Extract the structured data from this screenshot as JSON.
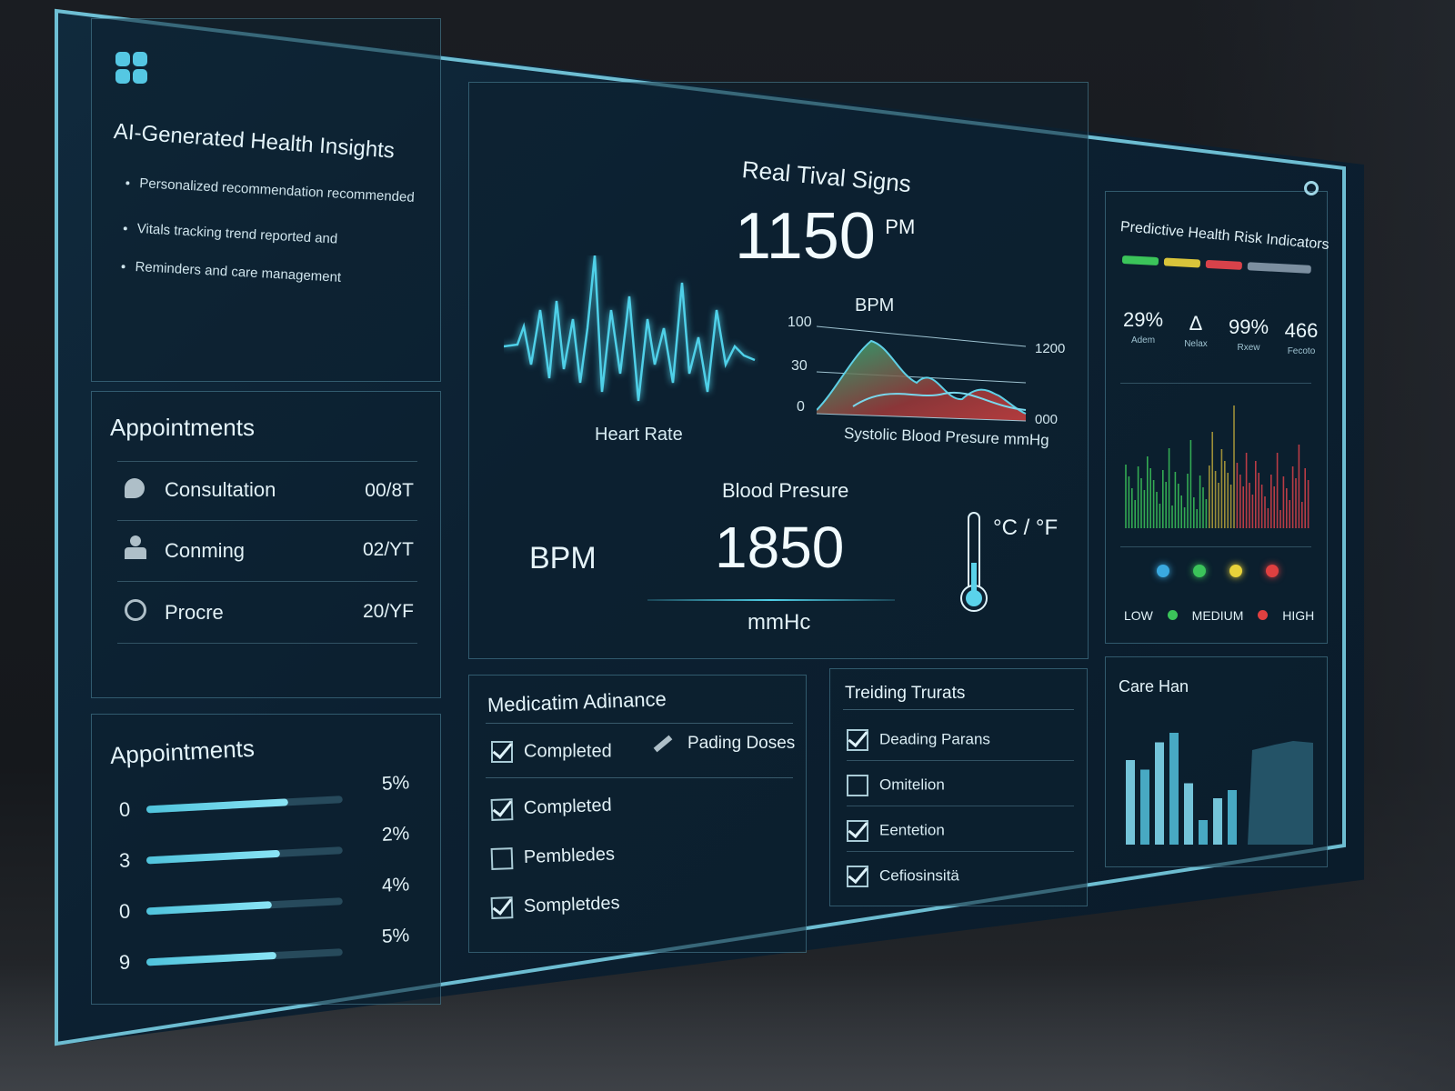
{
  "insights": {
    "title": "AI-Generated Health Insights",
    "bullets": [
      "Personalized recommendation recommended",
      "Vitals tracking trend reported and",
      "Reminders and care management"
    ]
  },
  "appointments": {
    "title": "Appointments",
    "items": [
      {
        "label": "Consultation",
        "date": "00/8T"
      },
      {
        "label": "Conming",
        "date": "02/YT"
      },
      {
        "label": "Procre",
        "date": "20/YF"
      }
    ]
  },
  "vitals": {
    "title": "Real Tival Signs",
    "main_value": "1150",
    "main_unit": "PM",
    "heart_rate_label": "Heart Rate",
    "bpm_title": "BPM",
    "y_ticks": [
      "100",
      "30",
      "0"
    ],
    "right_ticks": [
      "1200",
      "000"
    ],
    "sys_label": "Systolic Blood Presure mmHg",
    "bp_title": "Blood Presure",
    "bp_left_label": "BPM",
    "bp_value": "1850",
    "bp_unit": "mmHc",
    "temp_unit": "°C / °F"
  },
  "risk": {
    "title": "Predictive Health Risk Indicators",
    "bar_colors": [
      "#3bc45a",
      "#d9c43a",
      "#d8424a",
      "#7c8fa0"
    ],
    "stats": [
      {
        "value": "29%",
        "label": "Adem"
      },
      {
        "value": "Δ",
        "label": "Nelax"
      },
      {
        "value": "99%",
        "label": "Rxew"
      },
      {
        "value": "466",
        "label": "Fecoto"
      }
    ],
    "dots": [
      "#3aa9e0",
      "#3bc45a",
      "#e8d23a",
      "#e04040"
    ],
    "legend": {
      "low": "LOW",
      "medium": "MEDIUM",
      "high": "HIGH"
    }
  },
  "progress": {
    "title": "Appointments",
    "rows": [
      {
        "num": "0",
        "pct": "5%",
        "fill": 0.72
      },
      {
        "num": "3",
        "pct": "2%",
        "fill": 0.68
      },
      {
        "num": "0",
        "pct": "4%",
        "fill": 0.64
      },
      {
        "num": "9",
        "pct": "5%",
        "fill": 0.66
      }
    ]
  },
  "medication": {
    "title": "Medicatim Adinance",
    "top": {
      "label": "Completed",
      "checked": true
    },
    "pending": "Pading Doses",
    "items": [
      {
        "label": "Completed",
        "checked": true
      },
      {
        "label": "Pembledes",
        "checked": false
      },
      {
        "label": "Sompletdes",
        "checked": true
      }
    ]
  },
  "trending": {
    "title": "Treiding Trurats",
    "items": [
      {
        "label": "Deading Parans",
        "checked": true
      },
      {
        "label": "Omitelion",
        "checked": false
      },
      {
        "label": "Eentetion",
        "checked": true
      },
      {
        "label": "Cefiosinsitä",
        "checked": true
      }
    ]
  },
  "careplan": {
    "title": "Care Han",
    "bars": [
      0.62,
      0.55,
      0.75,
      0.82,
      0.45,
      0.18,
      0.34,
      0.4
    ]
  }
}
